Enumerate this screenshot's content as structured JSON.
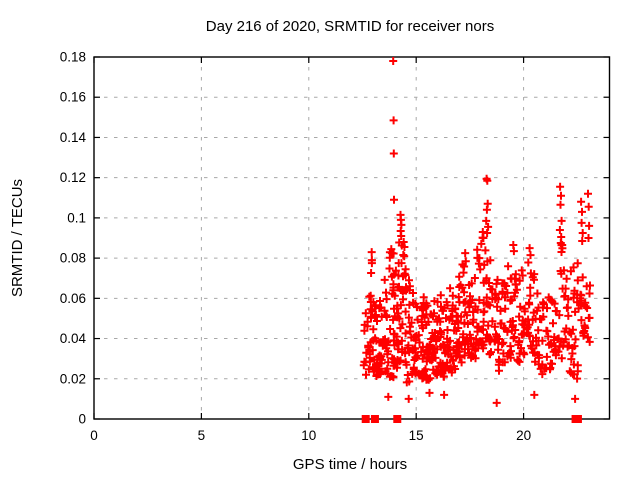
{
  "chart_data": {
    "type": "scatter",
    "title": "Day 216 of 2020, SRMTID for receiver nors",
    "xlabel": "GPS time / hours",
    "ylabel": "SRMTID / TECUs",
    "xlim": [
      0,
      24
    ],
    "ylim": [
      0,
      0.18
    ],
    "grid": true,
    "legend": "none",
    "xticks": {
      "values": [
        0,
        5,
        10,
        15,
        20
      ],
      "labels": [
        "0",
        "5",
        "10",
        "15",
        "20"
      ]
    },
    "yticks": {
      "values": [
        0,
        0.02,
        0.04,
        0.06,
        0.08,
        0.1,
        0.12,
        0.14,
        0.16,
        0.18
      ],
      "labels": [
        "0",
        "0.02",
        "0.04",
        "0.06",
        "0.08",
        "0.1",
        "0.12",
        "0.14",
        "0.16",
        "0.18"
      ]
    },
    "colors": {
      "marker": "#ff0000",
      "grid": "#a8a8a8",
      "axis": "#000000",
      "background": "#ffffff"
    },
    "seed": 216,
    "series": [
      {
        "name": "srmtid",
        "marker": "plus",
        "color": "#ff0000",
        "points": [
          [
            13.93,
            0.178
          ],
          [
            13.95,
            0.1485
          ],
          [
            13.96,
            0.132
          ],
          [
            13.965,
            0.109
          ],
          [
            14.27,
            0.1015
          ],
          [
            14.29,
            0.099
          ],
          [
            14.31,
            0.0965
          ],
          [
            14.28,
            0.0935
          ],
          [
            14.3,
            0.091
          ],
          [
            12.93,
            0.083
          ],
          [
            12.94,
            0.079
          ],
          [
            13.84,
            0.0845
          ],
          [
            13.87,
            0.0825
          ],
          [
            14.42,
            0.088
          ],
          [
            14.45,
            0.0855
          ],
          [
            17.28,
            0.0825
          ],
          [
            18.28,
            0.1195
          ],
          [
            18.31,
            0.1185
          ],
          [
            18.33,
            0.107
          ],
          [
            18.29,
            0.104
          ],
          [
            18.26,
            0.0985
          ],
          [
            18.35,
            0.0955
          ],
          [
            18.3,
            0.0925
          ],
          [
            18.1,
            0.093
          ],
          [
            18.13,
            0.09
          ],
          [
            19.52,
            0.0865
          ],
          [
            19.55,
            0.0835
          ],
          [
            20.28,
            0.085
          ],
          [
            20.32,
            0.0815
          ],
          [
            21.7,
            0.1155
          ],
          [
            21.74,
            0.111
          ],
          [
            21.72,
            0.1065
          ],
          [
            21.77,
            0.0985
          ],
          [
            21.69,
            0.094
          ],
          [
            21.75,
            0.0905
          ],
          [
            21.8,
            0.0865
          ],
          [
            22.68,
            0.108
          ],
          [
            22.72,
            0.103
          ],
          [
            22.7,
            0.0975
          ],
          [
            22.75,
            0.0925
          ],
          [
            22.73,
            0.0885
          ],
          [
            23.0,
            0.112
          ],
          [
            23.03,
            0.1055
          ],
          [
            23.05,
            0.096
          ],
          [
            23.02,
            0.09
          ],
          [
            14.65,
            0.01
          ],
          [
            16.3,
            0.012
          ],
          [
            18.75,
            0.008
          ],
          [
            20.5,
            0.012
          ],
          [
            13.7,
            0.011
          ],
          [
            22.4,
            0.01
          ],
          [
            15.62,
            0.013
          ]
        ],
        "clusters": [
          [
            12.55,
            12.75,
            10,
            0.02,
            0.056
          ],
          [
            12.75,
            12.95,
            12,
            0.024,
            0.066
          ],
          [
            12.86,
            12.94,
            6,
            0.05,
            0.08
          ],
          [
            12.95,
            13.15,
            16,
            0.02,
            0.06
          ],
          [
            13.15,
            13.35,
            16,
            0.022,
            0.063
          ],
          [
            13.35,
            13.55,
            14,
            0.025,
            0.072
          ],
          [
            13.55,
            13.75,
            14,
            0.022,
            0.068
          ],
          [
            13.75,
            13.95,
            18,
            0.02,
            0.084
          ],
          [
            13.95,
            14.15,
            20,
            0.025,
            0.08
          ],
          [
            14.15,
            14.35,
            18,
            0.028,
            0.088
          ],
          [
            14.35,
            14.55,
            18,
            0.026,
            0.082
          ],
          [
            14.55,
            14.75,
            14,
            0.018,
            0.07
          ],
          [
            14.75,
            14.95,
            14,
            0.022,
            0.064
          ],
          [
            14.95,
            15.15,
            16,
            0.022,
            0.062
          ],
          [
            15.15,
            15.35,
            18,
            0.02,
            0.058
          ],
          [
            15.35,
            15.55,
            18,
            0.018,
            0.062
          ],
          [
            15.55,
            15.75,
            16,
            0.016,
            0.056
          ],
          [
            15.75,
            15.95,
            18,
            0.022,
            0.06
          ],
          [
            15.95,
            16.15,
            18,
            0.022,
            0.064
          ],
          [
            16.15,
            16.35,
            18,
            0.02,
            0.058
          ],
          [
            16.35,
            16.55,
            18,
            0.024,
            0.064
          ],
          [
            16.55,
            16.75,
            16,
            0.022,
            0.068
          ],
          [
            16.75,
            16.95,
            16,
            0.024,
            0.064
          ],
          [
            16.95,
            17.15,
            16,
            0.028,
            0.072
          ],
          [
            17.15,
            17.35,
            16,
            0.03,
            0.08
          ],
          [
            17.35,
            17.55,
            16,
            0.032,
            0.078
          ],
          [
            17.55,
            17.75,
            14,
            0.028,
            0.08
          ],
          [
            17.75,
            17.95,
            16,
            0.03,
            0.085
          ],
          [
            17.95,
            18.15,
            16,
            0.035,
            0.091
          ],
          [
            18.15,
            18.4,
            14,
            0.04,
            0.095
          ],
          [
            18.4,
            18.6,
            12,
            0.032,
            0.085
          ],
          [
            18.6,
            18.8,
            12,
            0.026,
            0.07
          ],
          [
            18.8,
            19.0,
            12,
            0.024,
            0.064
          ],
          [
            19.0,
            19.2,
            14,
            0.028,
            0.068
          ],
          [
            19.2,
            19.45,
            14,
            0.03,
            0.078
          ],
          [
            19.45,
            19.65,
            14,
            0.032,
            0.084
          ],
          [
            19.65,
            19.9,
            12,
            0.028,
            0.07
          ],
          [
            19.9,
            20.15,
            14,
            0.03,
            0.074
          ],
          [
            20.15,
            20.4,
            14,
            0.032,
            0.083
          ],
          [
            20.4,
            20.6,
            12,
            0.028,
            0.078
          ],
          [
            20.6,
            20.85,
            12,
            0.024,
            0.066
          ],
          [
            20.85,
            21.1,
            12,
            0.022,
            0.06
          ],
          [
            21.1,
            21.35,
            12,
            0.024,
            0.062
          ],
          [
            21.35,
            21.6,
            12,
            0.028,
            0.07
          ],
          [
            21.6,
            21.85,
            14,
            0.03,
            0.088
          ],
          [
            21.85,
            22.1,
            14,
            0.028,
            0.08
          ],
          [
            22.1,
            22.35,
            14,
            0.022,
            0.078
          ],
          [
            22.35,
            22.6,
            14,
            0.02,
            0.082
          ],
          [
            22.6,
            22.85,
            14,
            0.04,
            0.088
          ],
          [
            22.85,
            23.1,
            12,
            0.038,
            0.068
          ]
        ]
      },
      {
        "name": "zero_flags",
        "marker": "square",
        "color": "#ff0000",
        "points": [
          [
            12.65,
            0
          ],
          [
            13.08,
            0
          ],
          [
            14.12,
            0
          ],
          [
            22.42,
            0
          ],
          [
            22.48,
            0
          ],
          [
            22.53,
            0
          ]
        ]
      }
    ]
  }
}
